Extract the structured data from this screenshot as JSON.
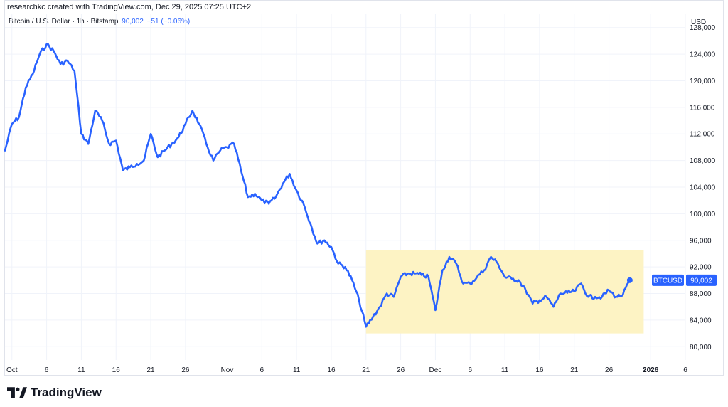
{
  "header": {
    "text": "researchkc created with TradingView.com, Dec 29, 2025 07:25 UTC+2"
  },
  "legend": {
    "symbol": "Bitcoin / U.S. Dollar · 1h · Bitstamp",
    "price": "90,002",
    "change": "−51 (−0.06%)"
  },
  "axis": {
    "currency": "USD"
  },
  "price_tag": {
    "symbol": "BTCUSD",
    "value": "90,002"
  },
  "footer": {
    "brand": "TradingView"
  },
  "colors": {
    "line": "#2962ff",
    "range_fill": "#fdf3c4",
    "tag": "#2962ff",
    "grid": "#f0f3fa"
  },
  "chart_data": {
    "type": "line",
    "ylim": [
      78000,
      130000
    ],
    "y_ticks": [
      80000,
      84000,
      88000,
      92000,
      96000,
      100000,
      104000,
      108000,
      112000,
      116000,
      120000,
      124000,
      128000
    ],
    "y_tick_labels": [
      "80,000",
      "84,000",
      "88,000",
      "92,000",
      "96,000",
      "100,000",
      "104,000",
      "108,000",
      "112,000",
      "116,000",
      "120,000",
      "124,000",
      "128,000"
    ],
    "xlim": [
      "2025-09-30",
      "2026-01-06"
    ],
    "x_ticks": [
      "2025-10-01",
      "2025-10-06",
      "2025-10-11",
      "2025-10-16",
      "2025-10-21",
      "2025-10-26",
      "2025-11-01",
      "2025-11-06",
      "2025-11-11",
      "2025-11-16",
      "2025-11-21",
      "2025-11-26",
      "2025-12-01",
      "2025-12-06",
      "2025-12-11",
      "2025-12-16",
      "2025-12-21",
      "2025-12-26",
      "2026-01-01",
      "2026-01-06"
    ],
    "x_tick_labels": [
      "Oct",
      "6",
      "11",
      "16",
      "21",
      "26",
      "Nov",
      "6",
      "11",
      "16",
      "21",
      "26",
      "Dec",
      "6",
      "11",
      "16",
      "21",
      "26",
      "2026",
      "6"
    ],
    "bold_tick_labels": [
      "2026"
    ],
    "grid": true,
    "series": [
      {
        "points": [
          [
            "2025-09-30",
            109500
          ],
          [
            "2025-10-01",
            113500
          ],
          [
            "2025-10-02",
            114500
          ],
          [
            "2025-10-03",
            119000
          ],
          [
            "2025-10-04",
            121000
          ],
          [
            "2025-10-05",
            124000
          ],
          [
            "2025-10-06",
            125500
          ],
          [
            "2025-10-07",
            124500
          ],
          [
            "2025-10-08",
            122500
          ],
          [
            "2025-10-09",
            123000
          ],
          [
            "2025-10-10",
            121500
          ],
          [
            "2025-10-11",
            112000
          ],
          [
            "2025-10-12",
            110500
          ],
          [
            "2025-10-13",
            115500
          ],
          [
            "2025-10-14",
            114000
          ],
          [
            "2025-10-15",
            110500
          ],
          [
            "2025-10-16",
            111000
          ],
          [
            "2025-10-17",
            106500
          ],
          [
            "2025-10-18",
            107000
          ],
          [
            "2025-10-19",
            107500
          ],
          [
            "2025-10-20",
            108000
          ],
          [
            "2025-10-21",
            112000
          ],
          [
            "2025-10-22",
            108500
          ],
          [
            "2025-10-23",
            109500
          ],
          [
            "2025-10-24",
            110500
          ],
          [
            "2025-10-25",
            111500
          ],
          [
            "2025-10-26",
            113500
          ],
          [
            "2025-10-27",
            115500
          ],
          [
            "2025-10-28",
            113500
          ],
          [
            "2025-10-29",
            110500
          ],
          [
            "2025-10-30",
            108000
          ],
          [
            "2025-10-31",
            109500
          ],
          [
            "2025-11-01",
            110000
          ],
          [
            "2025-11-02",
            110500
          ],
          [
            "2025-11-03",
            106500
          ],
          [
            "2025-11-04",
            102500
          ],
          [
            "2025-11-05",
            103000
          ],
          [
            "2025-11-06",
            102000
          ],
          [
            "2025-11-07",
            101500
          ],
          [
            "2025-11-08",
            102500
          ],
          [
            "2025-11-09",
            104500
          ],
          [
            "2025-11-10",
            106000
          ],
          [
            "2025-11-11",
            103500
          ],
          [
            "2025-11-12",
            101500
          ],
          [
            "2025-11-13",
            98500
          ],
          [
            "2025-11-14",
            95500
          ],
          [
            "2025-11-15",
            96000
          ],
          [
            "2025-11-16",
            95000
          ],
          [
            "2025-11-17",
            92500
          ],
          [
            "2025-11-18",
            92000
          ],
          [
            "2025-11-19",
            90000
          ],
          [
            "2025-11-20",
            87000
          ],
          [
            "2025-11-21",
            83000
          ],
          [
            "2025-11-22",
            84500
          ],
          [
            "2025-11-23",
            86000
          ],
          [
            "2025-11-24",
            88000
          ],
          [
            "2025-11-25",
            87500
          ],
          [
            "2025-11-26",
            90500
          ],
          [
            "2025-11-27",
            91000
          ],
          [
            "2025-11-28",
            91000
          ],
          [
            "2025-11-29",
            90800
          ],
          [
            "2025-11-30",
            90500
          ],
          [
            "2025-12-01",
            85500
          ],
          [
            "2025-12-02",
            91500
          ],
          [
            "2025-12-03",
            93500
          ],
          [
            "2025-12-04",
            92500
          ],
          [
            "2025-12-05",
            89500
          ],
          [
            "2025-12-06",
            89500
          ],
          [
            "2025-12-07",
            90500
          ],
          [
            "2025-12-08",
            91500
          ],
          [
            "2025-12-09",
            93500
          ],
          [
            "2025-12-10",
            92500
          ],
          [
            "2025-12-11",
            90500
          ],
          [
            "2025-12-12",
            90200
          ],
          [
            "2025-12-13",
            90000
          ],
          [
            "2025-12-14",
            88500
          ],
          [
            "2025-12-15",
            86500
          ],
          [
            "2025-12-16",
            87000
          ],
          [
            "2025-12-17",
            87500
          ],
          [
            "2025-12-18",
            86000
          ],
          [
            "2025-12-19",
            88000
          ],
          [
            "2025-12-20",
            88100
          ],
          [
            "2025-12-21",
            88300
          ],
          [
            "2025-12-22",
            89500
          ],
          [
            "2025-12-23",
            87500
          ],
          [
            "2025-12-24",
            87500
          ],
          [
            "2025-12-25",
            87500
          ],
          [
            "2025-12-26",
            88500
          ],
          [
            "2025-12-27",
            87500
          ],
          [
            "2025-12-28",
            87800
          ],
          [
            "2025-12-29",
            90002
          ]
        ]
      }
    ],
    "annotations": [
      {
        "type": "range_box",
        "x": [
          "2025-11-21",
          "2025-12-31"
        ],
        "y": [
          82000,
          94500
        ]
      }
    ]
  }
}
